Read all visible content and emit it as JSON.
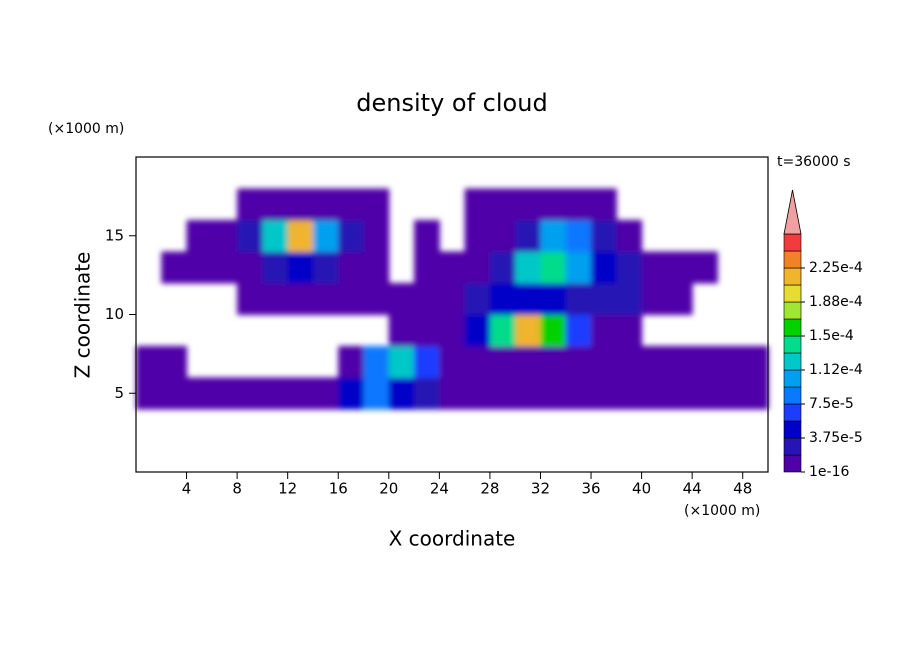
{
  "chart_data": {
    "type": "contour",
    "title": "density of cloud",
    "time_label": "t=36000 s",
    "xlabel": "X coordinate",
    "ylabel": "Z coordinate",
    "x_unit": "(×1000 m)",
    "y_unit": "(×1000 m)",
    "xlim": [
      0,
      50
    ],
    "ylim": [
      0,
      20
    ],
    "xticks": [
      4,
      8,
      12,
      16,
      20,
      24,
      28,
      32,
      36,
      40,
      44,
      48
    ],
    "yticks": [
      5,
      10,
      15
    ],
    "x": [
      1,
      3,
      5,
      7,
      9,
      11,
      13,
      15,
      17,
      19,
      21,
      23,
      25,
      27,
      29,
      31,
      33,
      35,
      37,
      39,
      41,
      43,
      45,
      47,
      49
    ],
    "y": [
      5,
      7,
      9,
      11,
      13,
      15,
      17
    ],
    "z": [
      [
        5e-06,
        5e-06,
        5e-06,
        5e-06,
        5e-06,
        5e-06,
        5e-06,
        5e-06,
        4e-05,
        9e-05,
        5e-05,
        2e-05,
        5e-06,
        5e-06,
        5e-06,
        5e-06,
        5e-06,
        5e-06,
        5e-06,
        5e-06,
        5e-06,
        5e-06,
        5e-06,
        5e-06,
        5e-06
      ],
      [
        5e-06,
        5e-06,
        0,
        0,
        0,
        0,
        0,
        0,
        5e-06,
        8e-05,
        0.00012,
        6e-05,
        5e-06,
        5e-06,
        5e-06,
        5e-06,
        5e-06,
        5e-06,
        5e-06,
        5e-06,
        5e-06,
        5e-06,
        5e-06,
        5e-06,
        5e-06
      ],
      [
        0,
        0,
        0,
        0,
        0,
        0,
        0,
        0,
        0,
        0,
        5e-06,
        5e-06,
        5e-06,
        4e-05,
        0.00014,
        0.00022,
        0.00016,
        6e-05,
        5e-06,
        5e-06,
        0,
        0,
        0,
        0,
        0
      ],
      [
        0,
        0,
        0,
        0,
        5e-06,
        5e-06,
        5e-06,
        5e-06,
        5e-06,
        5e-06,
        5e-06,
        5e-06,
        5e-06,
        2e-05,
        4e-05,
        5e-05,
        4e-05,
        3e-05,
        2e-05,
        2e-05,
        5e-06,
        5e-06,
        0,
        0,
        0
      ],
      [
        0,
        5e-06,
        5e-06,
        5e-06,
        5e-06,
        3e-05,
        4e-05,
        2e-05,
        5e-06,
        5e-06,
        0,
        5e-06,
        5e-06,
        5e-06,
        3e-05,
        0.00012,
        0.00014,
        0.0001,
        4e-05,
        3e-05,
        5e-06,
        5e-06,
        5e-06,
        0,
        0
      ],
      [
        0,
        0,
        5e-06,
        5e-06,
        2e-05,
        0.00012,
        0.00022,
        0.0001,
        3e-05,
        5e-06,
        0,
        5e-06,
        0,
        5e-06,
        5e-06,
        2e-05,
        0.0001,
        8e-05,
        2e-05,
        5e-06,
        0,
        0,
        0,
        0,
        0
      ],
      [
        0,
        0,
        0,
        0,
        5e-06,
        5e-06,
        5e-06,
        5e-06,
        5e-06,
        5e-06,
        0,
        0,
        0,
        5e-06,
        5e-06,
        5e-06,
        5e-06,
        5e-06,
        5e-06,
        0,
        0,
        0,
        0,
        0,
        0
      ]
    ],
    "levels": [
      1e-16,
      1.875e-05,
      3.75e-05,
      5.625e-05,
      7.5e-05,
      9.375e-05,
      0.0001125,
      0.00013125,
      0.00015,
      0.00016875,
      0.0001875,
      0.00020625,
      0.000225,
      0.00024375
    ],
    "colors": [
      "#5000a8",
      "#2814b4",
      "#0000c8",
      "#1e3cff",
      "#0a78ff",
      "#00a0f0",
      "#00c8c8",
      "#00dc8c",
      "#00d200",
      "#a0e632",
      "#e6dc32",
      "#f0b42d",
      "#f08228",
      "#f03c3c"
    ],
    "over_color": "#f0a0a0",
    "colorbar_ticks": [
      {
        "value": 1e-16,
        "label": "1e-16"
      },
      {
        "value": 3.75e-05,
        "label": "3.75e-5"
      },
      {
        "value": 7.5e-05,
        "label": "7.5e-5"
      },
      {
        "value": 0.0001125,
        "label": "1.12e-4"
      },
      {
        "value": 0.00015,
        "label": "1.5e-4"
      },
      {
        "value": 0.0001875,
        "label": "1.88e-4"
      },
      {
        "value": 0.000225,
        "label": "2.25e-4"
      }
    ]
  }
}
